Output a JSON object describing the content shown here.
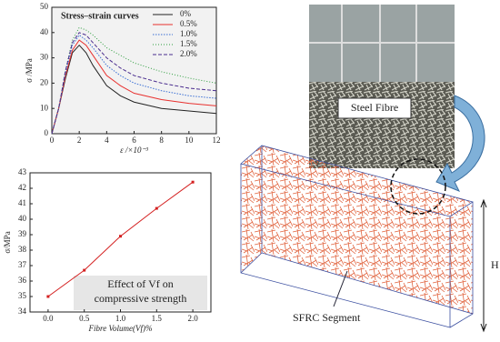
{
  "chart_data": [
    {
      "type": "line",
      "title": "Stress–strain curves",
      "xlabel": "ε /×10⁻³",
      "ylabel": "σ /MPa",
      "x": [
        0,
        0.5,
        1,
        1.5,
        2,
        2.5,
        3,
        4,
        5,
        6,
        8,
        10,
        12
      ],
      "series": [
        {
          "name": "0%",
          "color": "#222222",
          "dash": "none",
          "values": [
            0,
            10,
            22,
            32,
            35,
            32,
            27,
            19,
            15,
            12.5,
            10,
            9,
            8
          ]
        },
        {
          "name": "0.5%",
          "color": "#e8312f",
          "dash": "none",
          "values": [
            0,
            10,
            23,
            33,
            37,
            35,
            31,
            23,
            19,
            16,
            13.5,
            12,
            11
          ]
        },
        {
          "name": "1.0%",
          "color": "#3b6fd4",
          "dash": "1.5 1.5",
          "values": [
            0,
            10,
            24,
            35,
            39,
            37,
            34,
            27,
            23,
            20,
            17,
            15,
            14
          ]
        },
        {
          "name": "1.5%",
          "color": "#2e9e3e",
          "dash": "1 2",
          "values": [
            0,
            10,
            25,
            37,
            42,
            41,
            39,
            34,
            31,
            28,
            24.5,
            22,
            20
          ]
        },
        {
          "name": "2.0%",
          "color": "#4b2e8f",
          "dash": "4 2",
          "values": [
            0,
            10,
            25,
            36,
            40,
            39,
            36,
            30,
            26,
            23,
            20,
            18,
            17
          ]
        }
      ],
      "xlim": [
        0,
        12
      ],
      "xticks": [
        0,
        2,
        4,
        6,
        8,
        10,
        12
      ],
      "ylim": [
        0,
        50
      ],
      "yticks": [
        0,
        10,
        20,
        30,
        40,
        50
      ],
      "legend": "upper right"
    },
    {
      "type": "line",
      "xlabel": "Fibre Volume(Vf)%",
      "ylabel": "σ/MPa",
      "annotation": [
        "Effect of Vf on",
        "compressive strength"
      ],
      "x": [
        0,
        0.5,
        1,
        1.5,
        2
      ],
      "values": [
        35,
        36.7,
        38.9,
        40.7,
        42.4
      ],
      "color": "#d42020",
      "marker": true,
      "xlim": [
        -0.25,
        2.25
      ],
      "xticks": [
        {
          "value": 0,
          "label": "0.0"
        },
        {
          "value": 0.5,
          "label": "0.5"
        },
        {
          "value": 1,
          "label": "1.0"
        },
        {
          "value": 1.5,
          "label": "1.5"
        },
        {
          "value": 2,
          "label": "2.0"
        }
      ],
      "ylim": [
        34,
        43
      ],
      "yticks": [
        34,
        35,
        36,
        37,
        38,
        39,
        40,
        41,
        42,
        43
      ]
    }
  ],
  "figure_labels": {
    "steel_fibre": "Steel Fibre",
    "segment": "SFRC Segment",
    "height": "H"
  }
}
